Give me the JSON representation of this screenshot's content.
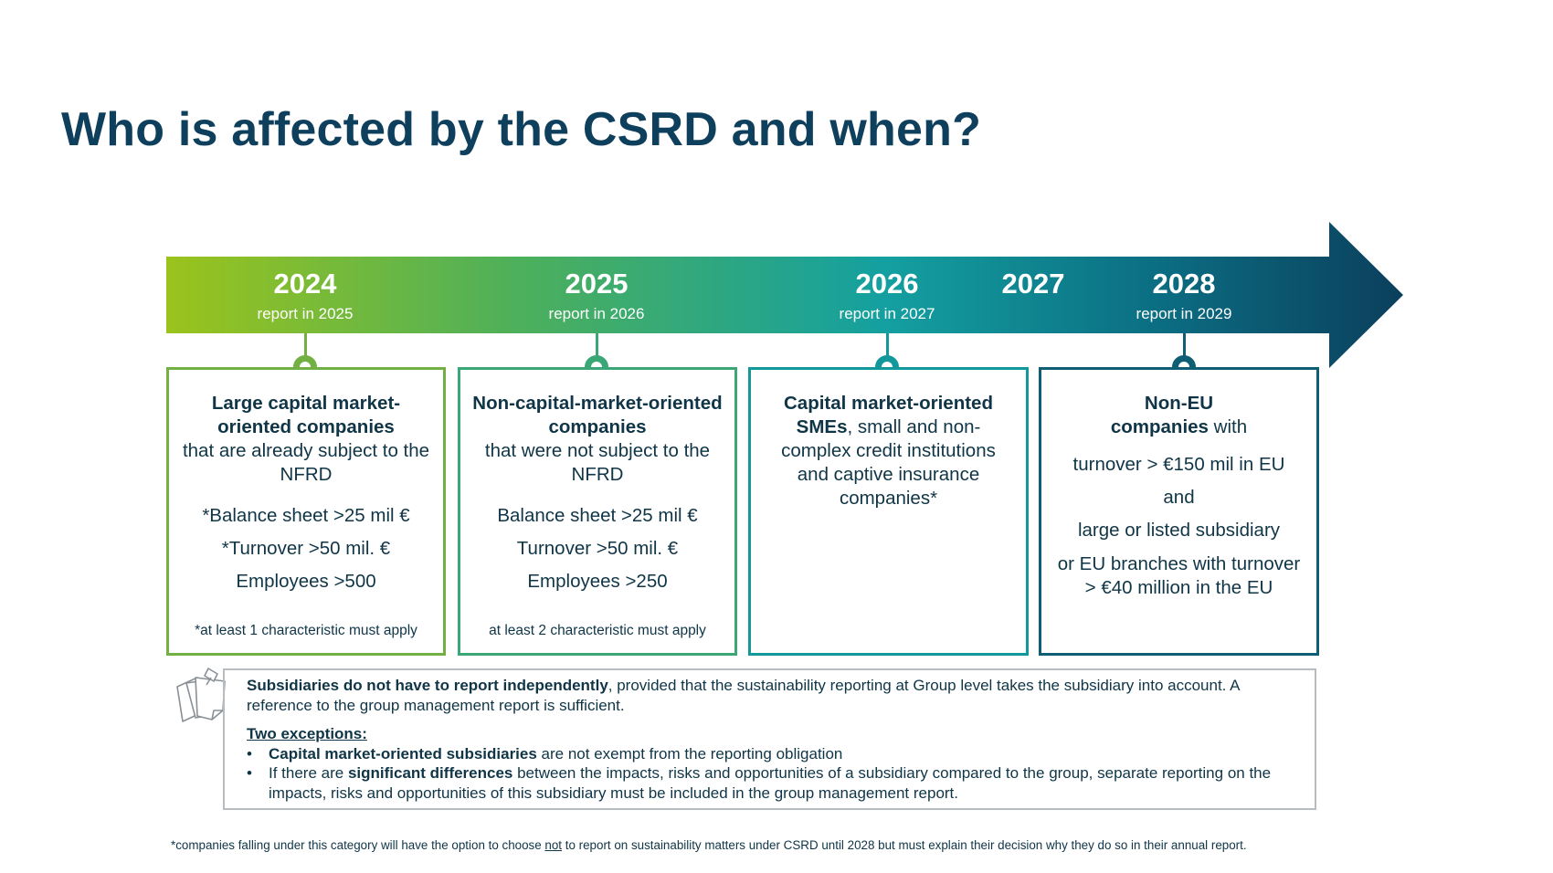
{
  "title": "Who is affected by the CSRD and when?",
  "colors": {
    "title": "#0e3f5c",
    "gradient_start": "#9bc31c",
    "gradient_mid": "#1ea39a",
    "gradient_end": "#0b3f5c",
    "card1": "#72b043",
    "card2": "#3ba676",
    "card3": "#12979a",
    "card4": "#0e5f74"
  },
  "timeline": {
    "years": [
      {
        "year": "2024",
        "sub": "report in 2025"
      },
      {
        "year": "2025",
        "sub": "report in 2026"
      },
      {
        "year": "2026",
        "sub": "report in 2027"
      },
      {
        "year": "2027",
        "sub": ""
      },
      {
        "year": "2028",
        "sub": "report in 2029"
      }
    ]
  },
  "cards": [
    {
      "heading": "Large capital market-oriented companies",
      "body": "that are already subject to the NFRD",
      "criteria": [
        "*Balance sheet >25 mil €",
        "*Turnover >50 mil. €",
        "Employees >500"
      ],
      "note": "*at least 1 characteristic must apply"
    },
    {
      "heading": "Non-capital-market-oriented companies",
      "body": "that were not subject to the NFRD",
      "criteria": [
        "Balance sheet >25 mil €",
        "Turnover >50 mil. €",
        "Employees >250"
      ],
      "note": "at least 2 characteristic must apply"
    },
    {
      "heading": "Capital market-oriented SMEs",
      "body": ", small and non-complex credit institutions and captive insurance companies*"
    },
    {
      "heading": "Non-EU companies",
      "body": " with",
      "lines": [
        "turnover > €150 mil in EU",
        "and",
        "large or listed subsidiary",
        "or EU branches with turnover > €40 million in the EU"
      ]
    }
  ],
  "info": {
    "lead_bold": "Subsidiaries do not have to report independently",
    "lead_rest": ", provided that the sustainability reporting at Group level takes the subsidiary into account. A reference to the group management report is sufficient.",
    "exceptions_heading": "Two exceptions:",
    "exceptions": [
      {
        "bold": "Capital market-oriented subsidiaries",
        "rest": " are not exempt from the reporting obligation"
      },
      {
        "pre": "If there are ",
        "bold": "significant differences",
        "rest": " between the impacts, risks and opportunities of a subsidiary compared to the group, separate reporting on the impacts, risks and opportunities of this subsidiary must be included in the group management report."
      }
    ],
    "icon": "sticky-notes-icon"
  },
  "footnote": {
    "pre": "*companies falling under this category will have the option to choose ",
    "underlined": "not",
    "post": " to report on sustainability matters under CSRD until 2028 but must explain their decision why they do so in their annual report."
  }
}
